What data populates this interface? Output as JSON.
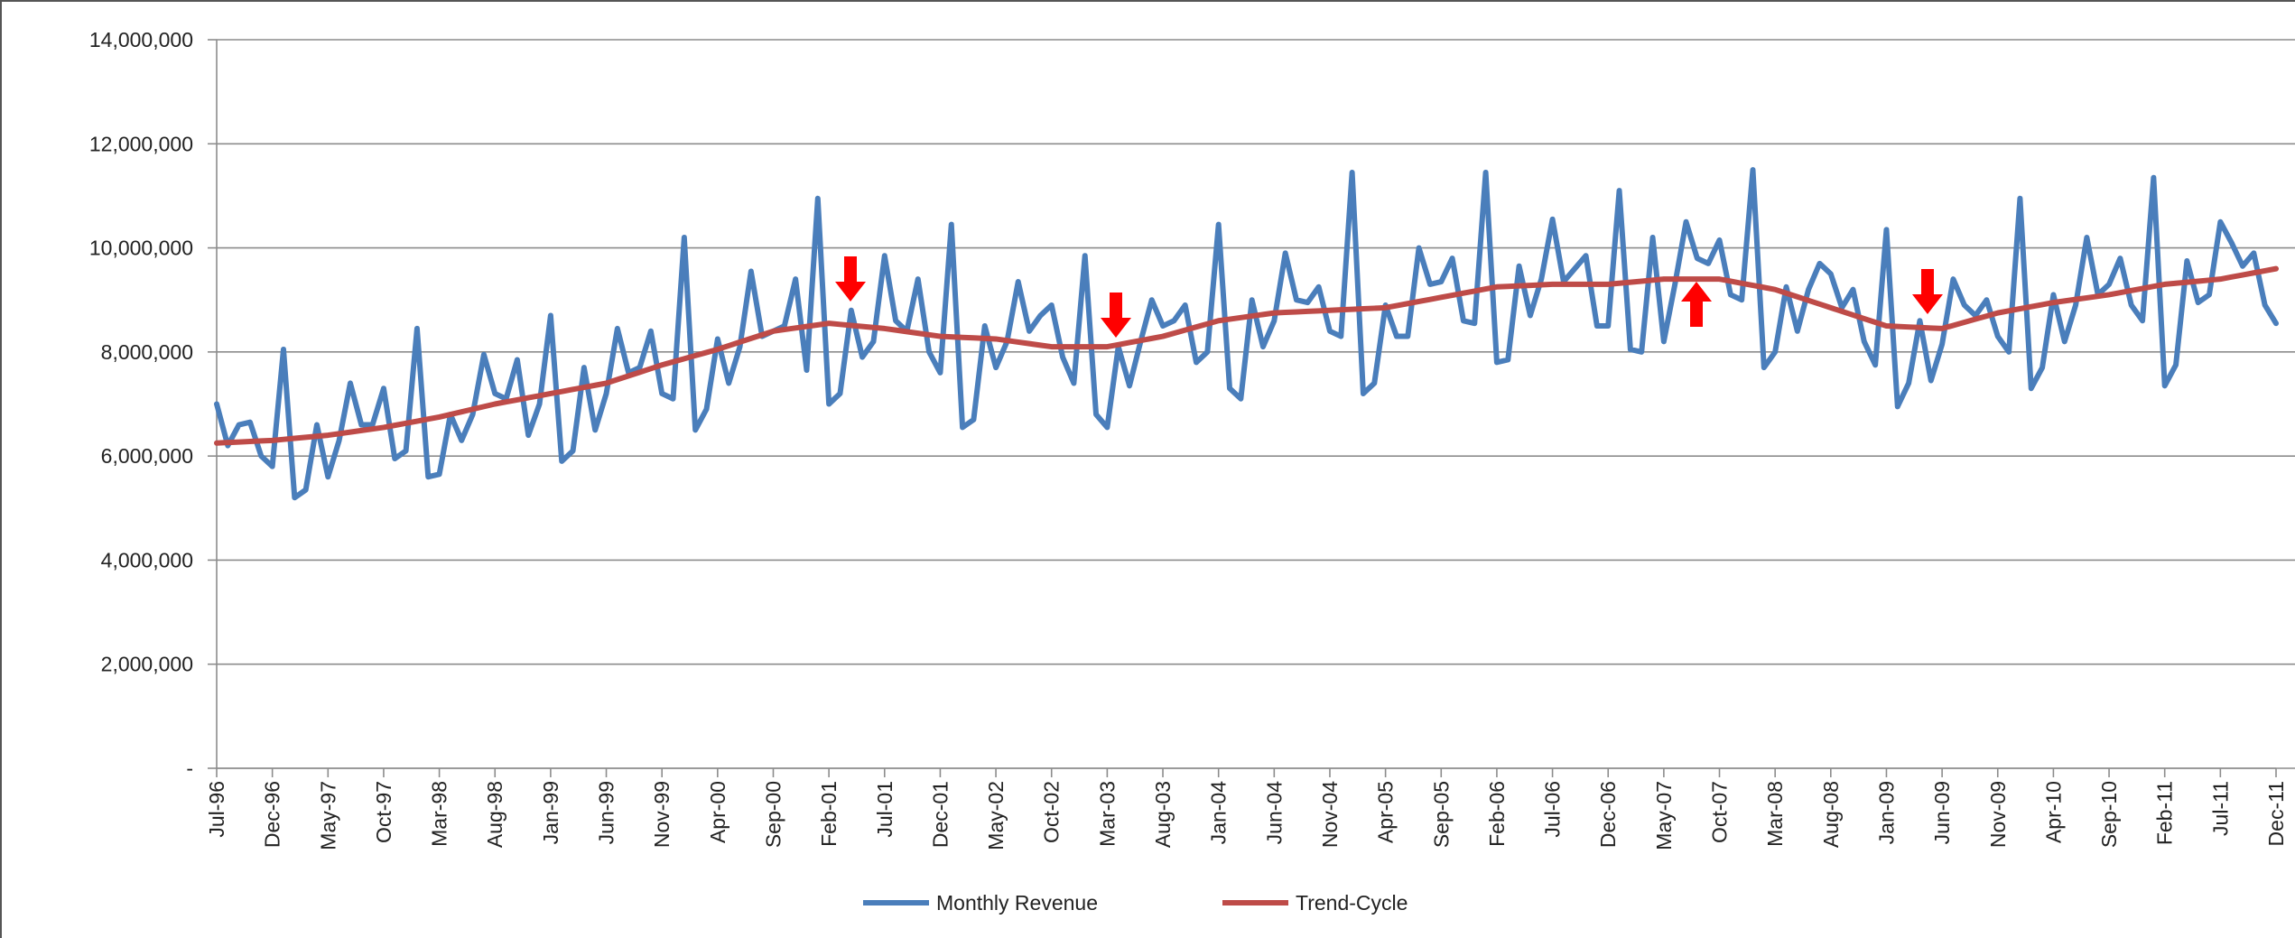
{
  "chart_data": {
    "type": "line",
    "categories": [
      "Jul-96",
      null,
      null,
      null,
      null,
      "Dec-96",
      null,
      null,
      null,
      null,
      "May-97",
      null,
      null,
      null,
      null,
      "Oct-97",
      null,
      null,
      null,
      null,
      "Mar-98",
      null,
      null,
      null,
      null,
      "Aug-98",
      null,
      null,
      null,
      null,
      "Jan-99",
      null,
      null,
      null,
      null,
      "Jun-99",
      null,
      null,
      null,
      null,
      "Nov-99",
      null,
      null,
      null,
      null,
      "Apr-00",
      null,
      null,
      null,
      null,
      "Sep-00",
      null,
      null,
      null,
      null,
      "Feb-01",
      null,
      null,
      null,
      null,
      "Jul-01",
      null,
      null,
      null,
      null,
      "Dec-01",
      null,
      null,
      null,
      null,
      "May-02",
      null,
      null,
      null,
      null,
      "Oct-02",
      null,
      null,
      null,
      null,
      "Mar-03",
      null,
      null,
      null,
      null,
      "Aug-03",
      null,
      null,
      null,
      null,
      "Jan-04",
      null,
      null,
      null,
      null,
      "Jun-04",
      null,
      null,
      null,
      null,
      "Nov-04",
      null,
      null,
      null,
      null,
      "Apr-05",
      null,
      null,
      null,
      null,
      "Sep-05",
      null,
      null,
      null,
      null,
      "Feb-06",
      null,
      null,
      null,
      null,
      "Jul-06",
      null,
      null,
      null,
      null,
      "Dec-06",
      null,
      null,
      null,
      null,
      "May-07",
      null,
      null,
      null,
      null,
      "Oct-07",
      null,
      null,
      null,
      null,
      "Mar-08",
      null,
      null,
      null,
      null,
      "Aug-08",
      null,
      null,
      null,
      null,
      "Jan-09",
      null,
      null,
      null,
      null,
      "Jun-09",
      null,
      null,
      null,
      null,
      "Nov-09",
      null,
      null,
      null,
      null,
      "Apr-10",
      null,
      null,
      null,
      null,
      "Sep-10",
      null,
      null,
      null,
      null,
      "Feb-11",
      null,
      null,
      null,
      null,
      "Jul-11",
      null,
      null,
      null,
      null,
      "Dec-11"
    ],
    "series": [
      {
        "name": "Monthly Revenue",
        "color": "#4a7ebb",
        "values": [
          7000000,
          6200000,
          6600000,
          6650000,
          6000000,
          5800000,
          8050000,
          5200000,
          5350000,
          6600000,
          5600000,
          6300000,
          7400000,
          6600000,
          6600000,
          7300000,
          5950000,
          6100000,
          8450000,
          5600000,
          5650000,
          6800000,
          6300000,
          6800000,
          7950000,
          7200000,
          7100000,
          7850000,
          6400000,
          7000000,
          8700000,
          5900000,
          6100000,
          7700000,
          6500000,
          7200000,
          8450000,
          7600000,
          7700000,
          8400000,
          7200000,
          7100000,
          10200000,
          6500000,
          6900000,
          8250000,
          7400000,
          8100000,
          9550000,
          8300000,
          8400000,
          8500000,
          9400000,
          7650000,
          10950000,
          7000000,
          7200000,
          8800000,
          7900000,
          8200000,
          9850000,
          8600000,
          8400000,
          9400000,
          8000000,
          7600000,
          10450000,
          6550000,
          6700000,
          8500000,
          7700000,
          8200000,
          9350000,
          8400000,
          8700000,
          8900000,
          7900000,
          7400000,
          9850000,
          6800000,
          6550000,
          8100000,
          7350000,
          8200000,
          9000000,
          8500000,
          8600000,
          8900000,
          7800000,
          8000000,
          10450000,
          7300000,
          7100000,
          9000000,
          8100000,
          8600000,
          9900000,
          9000000,
          8950000,
          9250000,
          8400000,
          8300000,
          11450000,
          7200000,
          7400000,
          8900000,
          8300000,
          8300000,
          10000000,
          9300000,
          9350000,
          9800000,
          8600000,
          8550000,
          11450000,
          7800000,
          7850000,
          9650000,
          8700000,
          9400000,
          10550000,
          9350000,
          9600000,
          9850000,
          8500000,
          8500000,
          11100000,
          8050000,
          8000000,
          10200000,
          8200000,
          9300000,
          10500000,
          9800000,
          9700000,
          10150000,
          9100000,
          9000000,
          11500000,
          7700000,
          8000000,
          9250000,
          8400000,
          9200000,
          9700000,
          9500000,
          8850000,
          9200000,
          8200000,
          7750000,
          10350000,
          6950000,
          7400000,
          8600000,
          7450000,
          8150000,
          9400000,
          8900000,
          8700000,
          9000000,
          8300000,
          8000000,
          10950000,
          7300000,
          7700000,
          9100000,
          8200000,
          8900000,
          10200000,
          9100000,
          9300000,
          9800000,
          8900000,
          8600000,
          11350000,
          7350000,
          7750000,
          9750000,
          8950000,
          9100000,
          10500000,
          10100000,
          9650000,
          9900000,
          8900000,
          8550000
        ]
      },
      {
        "name": "Trend-Cycle",
        "color": "#be4b48",
        "values": [
          6250000,
          6260000,
          6270000,
          6280000,
          6290000,
          6300000,
          6320000,
          6340000,
          6360000,
          6380000,
          6400000,
          6430000,
          6460000,
          6490000,
          6520000,
          6550000,
          6590000,
          6630000,
          6670000,
          6710000,
          6750000,
          6800000,
          6850000,
          6900000,
          6950000,
          7000000,
          7040000,
          7080000,
          7120000,
          7160000,
          7200000,
          7240000,
          7280000,
          7320000,
          7360000,
          7400000,
          7470000,
          7540000,
          7610000,
          7680000,
          7750000,
          7810000,
          7870000,
          7930000,
          7990000,
          8050000,
          8120000,
          8190000,
          8260000,
          8330000,
          8400000,
          8430000,
          8460000,
          8490000,
          8520000,
          8550000,
          8530000,
          8510000,
          8490000,
          8470000,
          8450000,
          8420000,
          8390000,
          8360000,
          8330000,
          8300000,
          8290000,
          8280000,
          8270000,
          8260000,
          8250000,
          8220000,
          8190000,
          8160000,
          8130000,
          8100000,
          8100000,
          8100000,
          8100000,
          8100000,
          8100000,
          8140000,
          8180000,
          8220000,
          8260000,
          8300000,
          8360000,
          8420000,
          8480000,
          8540000,
          8600000,
          8630000,
          8660000,
          8690000,
          8720000,
          8750000,
          8760000,
          8770000,
          8780000,
          8790000,
          8800000,
          8810000,
          8820000,
          8830000,
          8840000,
          8850000,
          8890000,
          8930000,
          8970000,
          9010000,
          9050000,
          9090000,
          9130000,
          9170000,
          9210000,
          9250000,
          9260000,
          9270000,
          9280000,
          9290000,
          9300000,
          9300000,
          9300000,
          9300000,
          9300000,
          9300000,
          9320000,
          9340000,
          9360000,
          9380000,
          9400000,
          9400000,
          9400000,
          9400000,
          9400000,
          9400000,
          9360000,
          9320000,
          9280000,
          9240000,
          9200000,
          9130000,
          9060000,
          8990000,
          8920000,
          8850000,
          8780000,
          8710000,
          8640000,
          8570000,
          8500000,
          8490000,
          8480000,
          8470000,
          8460000,
          8450000,
          8510000,
          8570000,
          8630000,
          8690000,
          8750000,
          8790000,
          8830000,
          8870000,
          8910000,
          8950000,
          8980000,
          9010000,
          9040000,
          9070000,
          9100000,
          9140000,
          9180000,
          9220000,
          9260000,
          9300000,
          9320000,
          9340000,
          9360000,
          9380000,
          9400000,
          9440000,
          9480000,
          9520000,
          9560000,
          9600000
        ]
      }
    ],
    "ylim": [
      0,
      14000000
    ],
    "yticks": [
      {
        "value": 0,
        "label": "-"
      },
      {
        "value": 2000000,
        "label": "2,000,000"
      },
      {
        "value": 4000000,
        "label": "4,000,000"
      },
      {
        "value": 6000000,
        "label": "6,000,000"
      },
      {
        "value": 8000000,
        "label": "8,000,000"
      },
      {
        "value": 10000000,
        "label": "10,000,000"
      },
      {
        "value": 12000000,
        "label": "12,000,000"
      },
      {
        "value": 14000000,
        "label": "14,000,000"
      }
    ],
    "grid": true,
    "legend": "bottom"
  }
}
